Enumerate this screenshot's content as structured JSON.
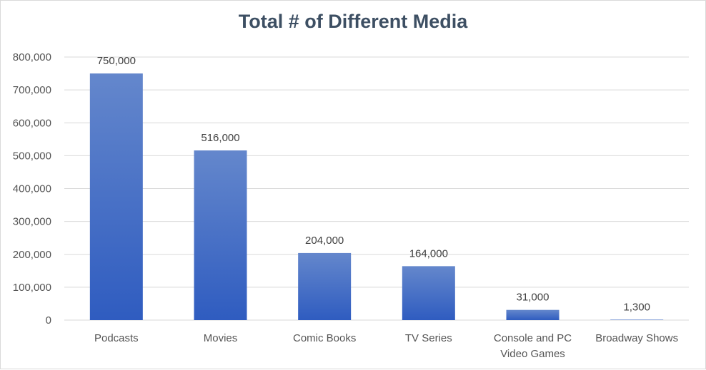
{
  "chart_data": {
    "type": "bar",
    "title": "Total # of Different Media",
    "xlabel": "",
    "ylabel": "",
    "categories": [
      "Podcasts",
      "Movies",
      "Comic Books",
      "TV Series",
      "Console and PC Video Games",
      "Broadway Shows"
    ],
    "category_lines": [
      [
        "Podcasts"
      ],
      [
        "Movies"
      ],
      [
        "Comic Books"
      ],
      [
        "TV Series"
      ],
      [
        "Console and PC",
        "Video Games"
      ],
      [
        "Broadway Shows"
      ]
    ],
    "values": [
      750000,
      516000,
      204000,
      164000,
      31000,
      1300
    ],
    "data_labels": [
      "750,000",
      "516,000",
      "204,000",
      "164,000",
      "31,000",
      "1,300"
    ],
    "ylim": [
      0,
      800000
    ],
    "yticks": [
      0,
      100000,
      200000,
      300000,
      400000,
      500000,
      600000,
      700000,
      800000
    ],
    "ytick_labels": [
      "0",
      "100,000",
      "200,000",
      "300,000",
      "400,000",
      "500,000",
      "600,000",
      "700,000",
      "800,000"
    ],
    "grid": true,
    "legend": "none",
    "colors": {
      "bar_top": "#6487cc",
      "bar_bottom": "#2f5cc0",
      "grid": "#d9d9d9",
      "title": "#3d4f63"
    }
  }
}
